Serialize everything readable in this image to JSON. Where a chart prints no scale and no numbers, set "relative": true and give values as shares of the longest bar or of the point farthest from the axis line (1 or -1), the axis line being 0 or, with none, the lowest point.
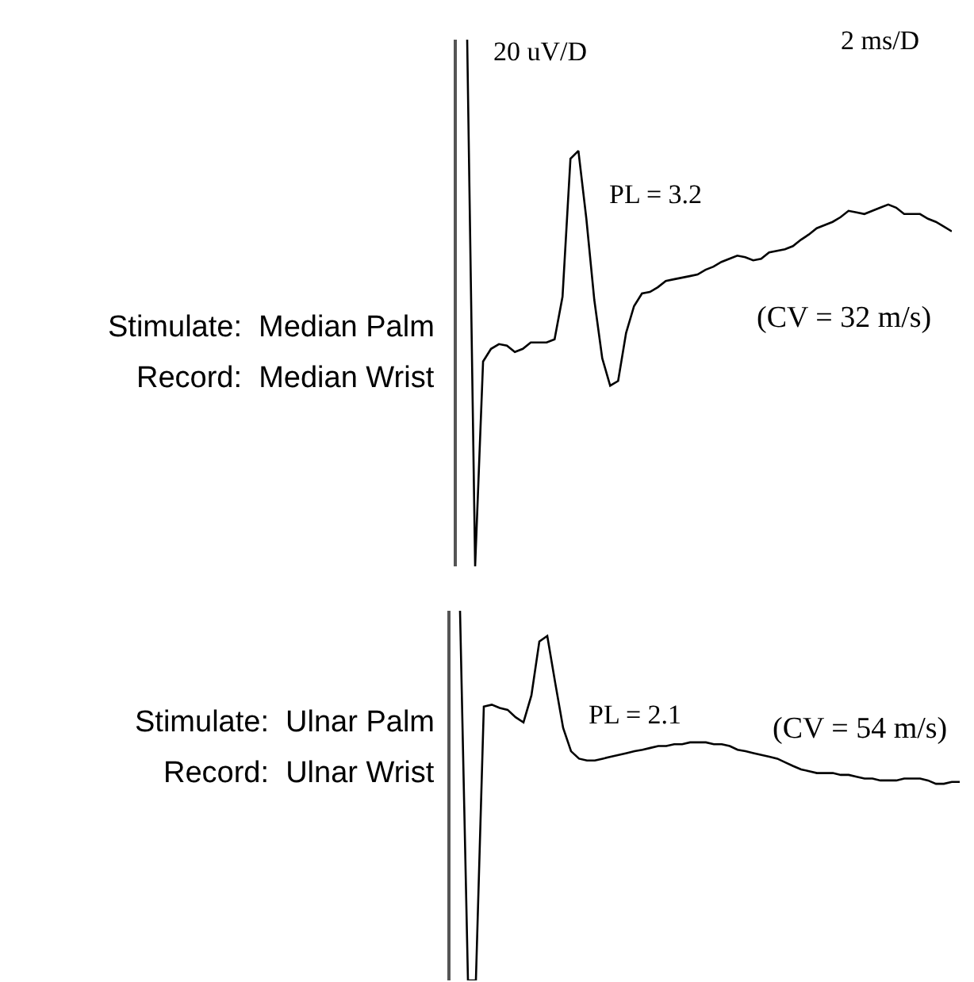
{
  "chart_data": [
    {
      "type": "line",
      "relative": true,
      "color": "#000000",
      "categories": [
        null,
        null,
        null,
        null,
        null,
        null,
        null,
        null,
        null,
        null,
        null,
        null,
        null,
        null,
        null,
        null,
        null,
        null,
        null,
        null,
        null,
        null,
        null,
        null,
        null,
        null,
        null,
        null,
        null,
        null,
        null,
        null,
        null,
        null,
        null,
        null,
        null,
        null,
        null,
        null,
        null,
        null,
        null,
        null,
        null,
        null,
        null,
        null,
        null,
        null,
        null,
        null,
        null,
        null,
        null,
        null,
        null,
        null,
        null,
        null,
        null,
        null
      ],
      "values": [
        1.0,
        0,
        0.389,
        0.413,
        0.422,
        0.419,
        0.407,
        0.413,
        0.425,
        0.425,
        0.425,
        0.431,
        0.512,
        0.774,
        0.789,
        0.66,
        0.506,
        0.395,
        0.343,
        0.352,
        0.443,
        0.494,
        0.518,
        0.521,
        0.53,
        0.542,
        0.545,
        0.548,
        0.551,
        0.554,
        0.563,
        0.569,
        0.578,
        0.584,
        0.59,
        0.587,
        0.581,
        0.584,
        0.596,
        0.599,
        0.602,
        0.608,
        0.62,
        0.63,
        0.642,
        0.648,
        0.654,
        0.663,
        0.675,
        0.672,
        0.669,
        0.675,
        0.681,
        0.687,
        0.681,
        0.669,
        0.669,
        0.669,
        0.66,
        0.654,
        0.645,
        0.636
      ],
      "annotations": [
        "20 uV/D",
        "2 ms/D",
        "PL = 3.2",
        "(CV = 32 m/s)",
        "Stimulate:  Median Palm",
        "Record:  Median Wrist"
      ]
    },
    {
      "type": "line",
      "relative": true,
      "color": "#000000",
      "categories": [
        null,
        null,
        null,
        null,
        null,
        null,
        null,
        null,
        null,
        null,
        null,
        null,
        null,
        null,
        null,
        null,
        null,
        null,
        null,
        null,
        null,
        null,
        null,
        null,
        null,
        null,
        null,
        null,
        null,
        null,
        null,
        null,
        null,
        null,
        null,
        null,
        null,
        null,
        null,
        null,
        null,
        null,
        null,
        null,
        null,
        null,
        null,
        null,
        null,
        null,
        null,
        null,
        null,
        null,
        null,
        null,
        null,
        null,
        null,
        null,
        null,
        null,
        null,
        null
      ],
      "values": [
        1.0,
        0,
        0,
        0.741,
        0.746,
        0.737,
        0.732,
        0.712,
        0.698,
        0.771,
        0.917,
        0.932,
        0.805,
        0.683,
        0.62,
        0.6,
        0.595,
        0.595,
        0.6,
        0.605,
        0.61,
        0.615,
        0.62,
        0.624,
        0.629,
        0.634,
        0.634,
        0.639,
        0.639,
        0.644,
        0.644,
        0.644,
        0.639,
        0.639,
        0.634,
        0.624,
        0.62,
        0.615,
        0.61,
        0.605,
        0.6,
        0.59,
        0.58,
        0.571,
        0.566,
        0.561,
        0.561,
        0.561,
        0.556,
        0.556,
        0.551,
        0.546,
        0.546,
        0.541,
        0.541,
        0.541,
        0.546,
        0.546,
        0.546,
        0.541,
        0.532,
        0.532,
        0.537,
        0.537
      ],
      "annotations": [
        "PL = 2.1",
        "(CV = 54 m/s)",
        "Stimulate:  Ulnar Palm",
        "Record:  Ulnar Wrist"
      ]
    }
  ]
}
